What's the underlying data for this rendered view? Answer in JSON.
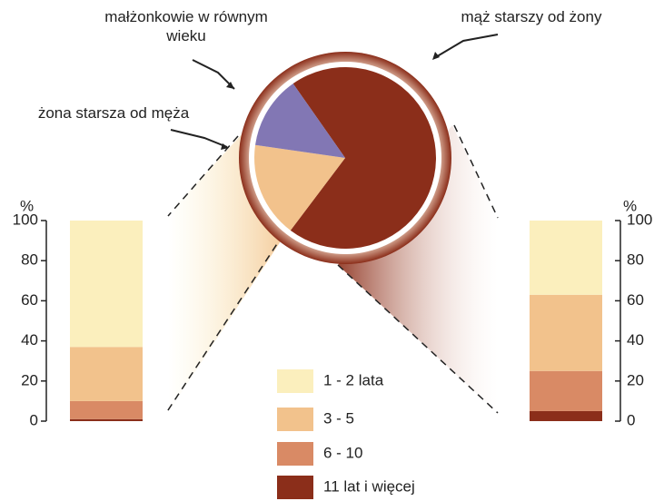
{
  "chart_data": [
    {
      "type": "pie",
      "labels": [
        "mąż starszy od żony",
        "żona starsza od męża",
        "małżonkowie w równym wieku"
      ],
      "values": [
        70,
        17,
        13
      ],
      "colors": [
        "#8b2e1a",
        "#f2c28c",
        "#8277b4"
      ]
    },
    {
      "type": "stacked_bar",
      "categories": [
        null,
        null
      ],
      "y_label": "%",
      "ylim": [
        0,
        100
      ],
      "yticks": [
        0,
        20,
        40,
        60,
        80,
        100
      ],
      "series": [
        {
          "name": "1 - 2 lata",
          "color": "#fbefbd",
          "values": [
            63,
            37
          ]
        },
        {
          "name": "3 - 5",
          "color": "#f2c28c",
          "values": [
            27,
            38
          ]
        },
        {
          "name": "6 - 10",
          "color": "#d98a65",
          "values": [
            9,
            20
          ]
        },
        {
          "name": "11 lat i więcej",
          "color": "#8b2e1a",
          "values": [
            1,
            5
          ]
        }
      ]
    }
  ]
}
